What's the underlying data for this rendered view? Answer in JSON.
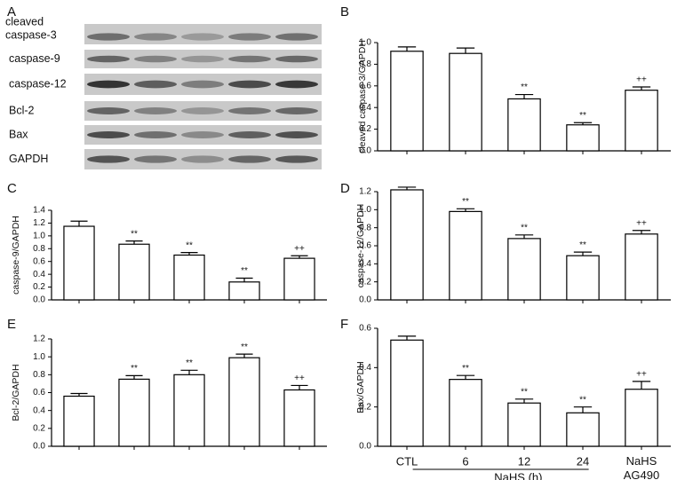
{
  "blot": {
    "panel": "A",
    "rows": [
      [
        "cleaved",
        "caspase-3"
      ],
      [
        "caspase-9"
      ],
      [
        "caspase-12"
      ],
      [
        "Bcl-2"
      ],
      [
        "Bax"
      ],
      [
        "GAPDH"
      ]
    ]
  },
  "chart_data": [
    {
      "type": "bar",
      "panel": "B",
      "ylabel": "cleaved caspase-3/GAPDH",
      "categories": [
        null,
        null,
        null,
        null,
        null
      ],
      "values": [
        0.92,
        0.9,
        0.48,
        0.24,
        0.56
      ],
      "errors": [
        0.04,
        0.05,
        0.04,
        0.02,
        0.03
      ],
      "annotations": [
        null,
        null,
        "**",
        "**",
        "++"
      ],
      "color": "#ffffff",
      "ylim": [
        0,
        1.0
      ],
      "yticks": [
        {
          "value": 0,
          "label": "0.0"
        },
        0.2,
        0.4,
        0.6,
        0.8,
        {
          "value": 1.0,
          "label": "1.0"
        }
      ]
    },
    {
      "type": "bar",
      "panel": "C",
      "ylabel": "caspase-9/GAPDH",
      "categories": [
        null,
        null,
        null,
        null,
        null
      ],
      "values": [
        1.15,
        0.87,
        0.7,
        0.28,
        0.65
      ],
      "errors": [
        0.08,
        0.05,
        0.04,
        0.06,
        0.04
      ],
      "annotations": [
        null,
        "**",
        "**",
        "**",
        "++"
      ],
      "color": "#ffffff",
      "ylim": [
        0,
        1.4
      ],
      "yticks": [
        {
          "value": 0,
          "label": "0.0"
        },
        0.2,
        0.4,
        0.6,
        0.8,
        {
          "value": 1.0,
          "label": "1.0"
        },
        1.2,
        1.4
      ]
    },
    {
      "type": "bar",
      "panel": "D",
      "ylabel": "caspase-12/GAPDH",
      "categories": [
        null,
        null,
        null,
        null,
        null
      ],
      "values": [
        1.22,
        0.98,
        0.68,
        0.49,
        0.73
      ],
      "errors": [
        0.03,
        0.03,
        0.04,
        0.04,
        0.04
      ],
      "annotations": [
        null,
        "**",
        "**",
        "**",
        "++"
      ],
      "color": "#ffffff",
      "ylim": [
        0,
        1.2
      ],
      "yticks": [
        {
          "value": 0,
          "label": "0.0"
        },
        0.2,
        0.4,
        0.6,
        0.8,
        {
          "value": 1.0,
          "label": "1.0"
        },
        1.2
      ]
    },
    {
      "type": "bar",
      "panel": "E",
      "ylabel": "Bcl-2/GAPDH",
      "categories": [
        null,
        null,
        null,
        null,
        null
      ],
      "values": [
        0.56,
        0.75,
        0.8,
        0.99,
        0.63
      ],
      "errors": [
        0.03,
        0.04,
        0.05,
        0.04,
        0.05
      ],
      "annotations": [
        null,
        "**",
        "**",
        "**",
        "++"
      ],
      "color": "#ffffff",
      "ylim": [
        0,
        1.2
      ],
      "yticks": [
        {
          "value": 0,
          "label": "0.0"
        },
        0.2,
        0.4,
        0.6,
        0.8,
        {
          "value": 1.0,
          "label": "1.0"
        },
        1.2
      ]
    },
    {
      "type": "bar",
      "panel": "F",
      "ylabel": "Bax/GAPDH",
      "categories": [
        "CTL",
        "6",
        "12",
        "24",
        "NaHS AG490"
      ],
      "group_label": "NaHS (h)",
      "values": [
        0.54,
        0.34,
        0.22,
        0.17,
        0.29
      ],
      "errors": [
        0.02,
        0.02,
        0.02,
        0.03,
        0.04
      ],
      "annotations": [
        null,
        "**",
        "**",
        "**",
        "++"
      ],
      "color": "#ffffff",
      "ylim": [
        0,
        0.6
      ],
      "yticks": [
        {
          "value": 0,
          "label": "0.0"
        },
        0.2,
        0.4,
        0.6
      ]
    }
  ]
}
